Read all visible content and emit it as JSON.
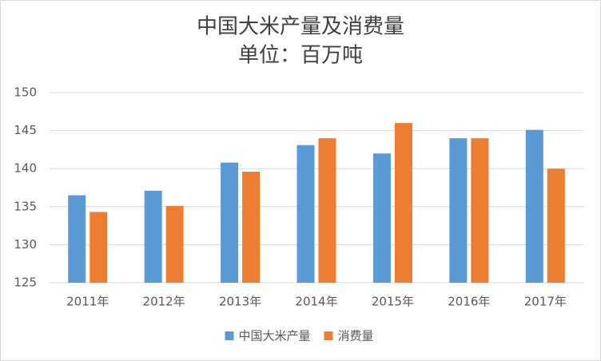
{
  "chart_data": {
    "type": "bar",
    "title": "中国大米产量及消费量",
    "subtitle": "单位：百万吨",
    "categories": [
      "2011年",
      "2012年",
      "2013年",
      "2014年",
      "2015年",
      "2016年",
      "2017年"
    ],
    "series": [
      {
        "name": "中国大米产量",
        "color": "#5b9bd5",
        "values": [
          136.5,
          137.1,
          140.8,
          143.1,
          142.0,
          144.0,
          145.1
        ]
      },
      {
        "name": "消费量",
        "color": "#ed7d31",
        "values": [
          134.3,
          135.1,
          139.6,
          144.0,
          146.0,
          144.0,
          140.0
        ]
      }
    ],
    "ylim": [
      125,
      150
    ],
    "yticks": [
      125,
      130,
      135,
      140,
      145,
      150
    ],
    "grid": true,
    "legend": "bottom"
  }
}
